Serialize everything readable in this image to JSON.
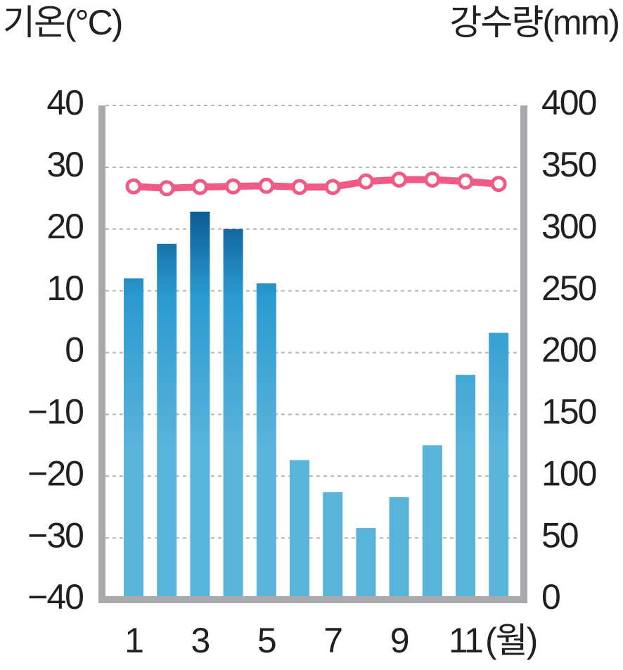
{
  "chart_data": {
    "type": "climate",
    "y_title": "기온(°C)",
    "y2_title": "강수량(mm)",
    "x_unit_label": "(월)",
    "categories": [
      "1",
      null,
      "3",
      null,
      "5",
      null,
      "7",
      null,
      "9",
      null,
      "11",
      null
    ],
    "series": [
      {
        "kind": "bar",
        "axis": "y2",
        "color": "#2a9ad0",
        "values": [
          260,
          288,
          314,
          300,
          256,
          113,
          87,
          58,
          83,
          125,
          182,
          216
        ]
      },
      {
        "kind": "line",
        "axis": "y",
        "color": "#ef5b84",
        "values": [
          26.9,
          26.6,
          26.8,
          26.9,
          27.0,
          26.8,
          26.8,
          27.7,
          28.0,
          28.0,
          27.7,
          27.3
        ]
      }
    ],
    "ylim": [
      -40,
      40
    ],
    "yticks": [
      {
        "value": -40,
        "label": "−40"
      },
      {
        "value": -30,
        "label": "−30"
      },
      {
        "value": -20,
        "label": "−20"
      },
      {
        "value": -10,
        "label": "−10"
      },
      0,
      10,
      20,
      30,
      40
    ],
    "y2lim": [
      0,
      400
    ],
    "y2ticks": [
      0,
      50,
      100,
      150,
      200,
      250,
      300,
      350,
      400
    ],
    "grid": true
  }
}
